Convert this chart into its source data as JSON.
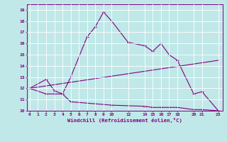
{
  "xlabel": "Windchill (Refroidissement éolien,°C)",
  "bg_color": "#c0e8e8",
  "line_color": "#800080",
  "grid_color": "#ffffff",
  "ylim": [
    10,
    19.5
  ],
  "xlim": [
    -0.3,
    23.5
  ],
  "yticks": [
    10,
    11,
    12,
    13,
    14,
    15,
    16,
    17,
    18,
    19
  ],
  "xticks": [
    0,
    1,
    2,
    3,
    4,
    5,
    6,
    7,
    8,
    9,
    10,
    12,
    14,
    15,
    16,
    17,
    18,
    20,
    21,
    23
  ],
  "line1_x": [
    0,
    2,
    3,
    4,
    5,
    7,
    8,
    9,
    10,
    12,
    14,
    15,
    16,
    17,
    18,
    20,
    21,
    23
  ],
  "line1_y": [
    12,
    12.8,
    11.8,
    11.5,
    13.0,
    16.6,
    17.5,
    18.8,
    18.0,
    16.1,
    15.8,
    15.3,
    16.0,
    15.0,
    14.5,
    11.5,
    11.7,
    10.0
  ],
  "line2_x": [
    0,
    23
  ],
  "line2_y": [
    12,
    14.5
  ],
  "line3_x": [
    0,
    2,
    3,
    4,
    5,
    10,
    14,
    15,
    16,
    17,
    18,
    20,
    21,
    23
  ],
  "line3_y": [
    12,
    11.5,
    11.5,
    11.5,
    10.8,
    10.5,
    10.4,
    10.3,
    10.3,
    10.3,
    10.3,
    10.1,
    10.1,
    10.0
  ]
}
